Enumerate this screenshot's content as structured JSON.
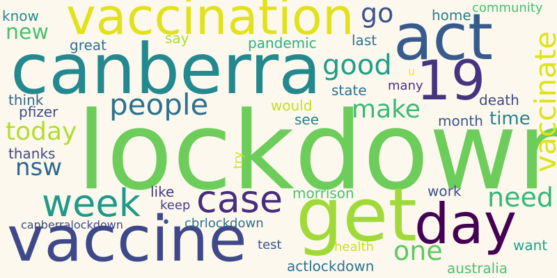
{
  "word_cloud": {
    "words": [
      {
        "text": "lockdown",
        "color": "#6ccd5a"
      },
      {
        "text": "vaccination",
        "color": "#e2e21b"
      },
      {
        "text": "act",
        "color": "#375b8d"
      },
      {
        "text": "canberra",
        "color": "#23898e"
      },
      {
        "text": "19",
        "color": "#453581"
      },
      {
        "text": "get",
        "color": "#a0da39"
      },
      {
        "text": "vaccine",
        "color": "#3e4989"
      },
      {
        "text": "day",
        "color": "#440154"
      },
      {
        "text": "case",
        "color": "#472d7b"
      },
      {
        "text": "week",
        "color": "#1f998a"
      },
      {
        "text": "people",
        "color": "#2c728e"
      },
      {
        "text": "vaccinate",
        "color": "#dde318"
      },
      {
        "text": "make",
        "color": "#3aba76"
      },
      {
        "text": "today",
        "color": "#b2dd2d"
      },
      {
        "text": "good",
        "color": "#1f9e89"
      },
      {
        "text": "need",
        "color": "#35b779"
      },
      {
        "text": "one",
        "color": "#5ec962"
      },
      {
        "text": "nsw",
        "color": "#31668e"
      },
      {
        "text": "go",
        "color": "#3b528b"
      },
      {
        "text": "new",
        "color": "#4ac16d"
      },
      {
        "text": "know",
        "color": "#23898e"
      },
      {
        "text": "say",
        "color": "#addc30"
      },
      {
        "text": "great",
        "color": "#2d708e"
      },
      {
        "text": "pandemic",
        "color": "#2ab07f"
      },
      {
        "text": "last",
        "color": "#2c728e"
      },
      {
        "text": "home",
        "color": "#287c8e"
      },
      {
        "text": "community",
        "color": "#44bf70"
      },
      {
        "text": "u",
        "color": "#fde725"
      },
      {
        "text": "many",
        "color": "#46337e"
      },
      {
        "text": "state",
        "color": "#2d708e"
      },
      {
        "text": "death",
        "color": "#3e4989"
      },
      {
        "text": "think",
        "color": "#31688e"
      },
      {
        "text": "pfizer",
        "color": "#3e4989"
      },
      {
        "text": "would",
        "color": "#c2df23"
      },
      {
        "text": "see",
        "color": "#27808e"
      },
      {
        "text": "month",
        "color": "#39568c"
      },
      {
        "text": "time",
        "color": "#26828e"
      },
      {
        "text": "thanks",
        "color": "#3e4a89"
      },
      {
        "text": "try",
        "color": "#d0e11c"
      },
      {
        "text": "like",
        "color": "#443a83"
      },
      {
        "text": "morrison",
        "color": "#48c16e"
      },
      {
        "text": "work",
        "color": "#3b528b"
      },
      {
        "text": "keep",
        "color": "#433e85"
      },
      {
        "text": "canberralockdown",
        "color": "#3e4989"
      },
      {
        "text": "•",
        "color": "#3b528b"
      },
      {
        "text": "cbrlockdown",
        "color": "#2d708e"
      },
      {
        "text": "test",
        "color": "#3b528b"
      },
      {
        "text": "health",
        "color": "#c8e020"
      },
      {
        "text": "want",
        "color": "#20a386"
      },
      {
        "text": "actlockdown",
        "color": "#2c728e"
      },
      {
        "text": "australia",
        "color": "#4ac16d"
      }
    ]
  }
}
